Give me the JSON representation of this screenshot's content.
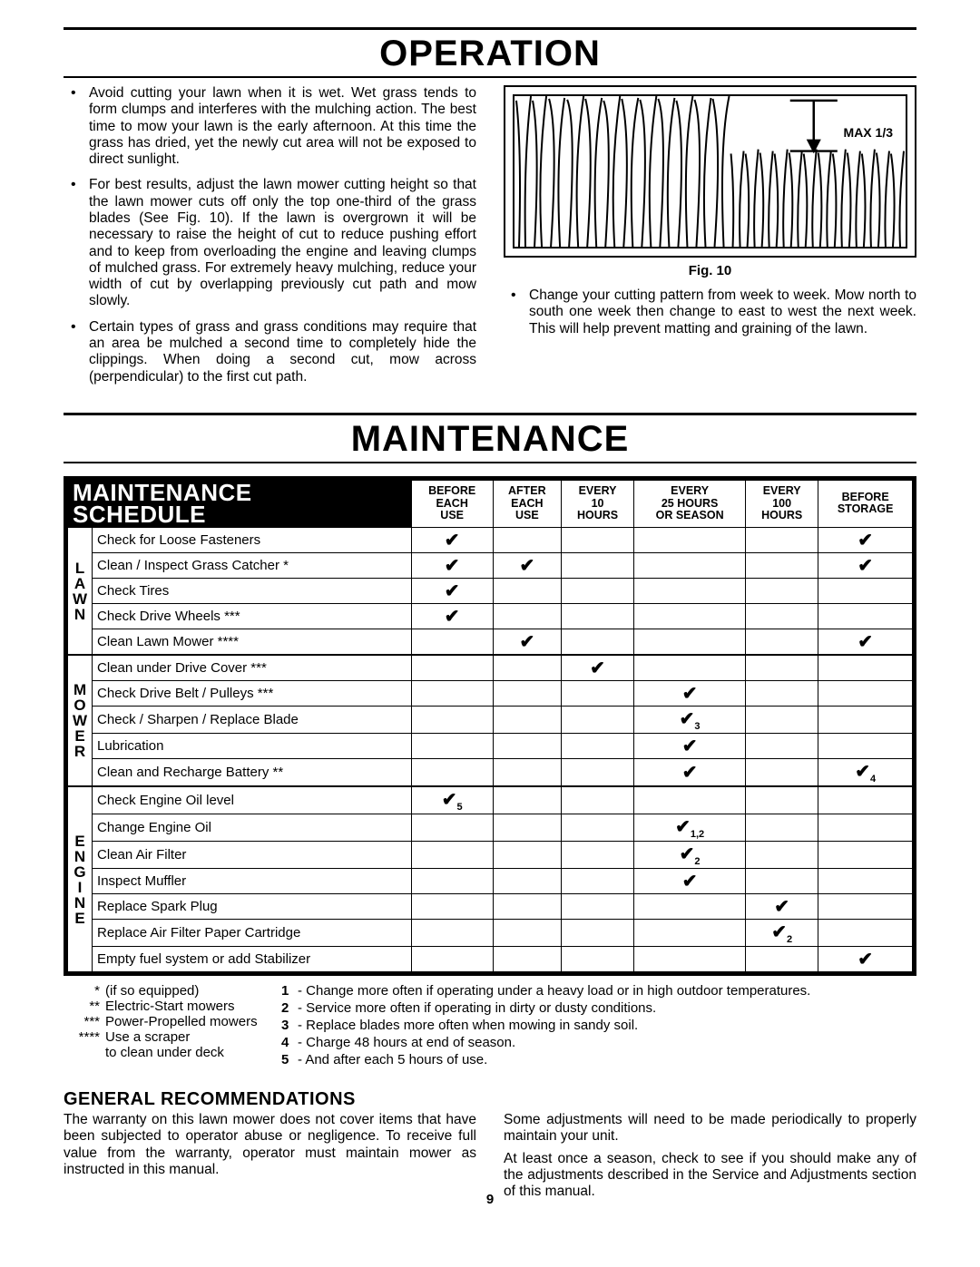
{
  "sections": {
    "operation": "OPERATION",
    "maintenance": "MAINTENANCE"
  },
  "operation": {
    "left_bullets": [
      "Avoid cutting your lawn when it is wet.  Wet grass tends to form clumps and interferes with the mulching action.  The best time to mow your lawn is the early afternoon.  At this time the grass has dried, yet the newly cut area will not be exposed to direct sunlight.",
      "For best results, adjust the lawn mower cutting height so that the lawn mower cuts off only the top one-third of the grass blades (See Fig. 10).  If the lawn is overgrown it will be necessary to raise the height of cut to reduce pushing effort and to keep from overloading the engine and leaving clumps of mulched grass. For extremely heavy mulching, reduce your width of cut by overlapping previously cut path and mow slowly.",
      "Certain types of grass and grass conditions may require that an area be mulched a second time to completely hide the clippings.  When doing a second cut, mow across (perpendicular) to the first cut path."
    ],
    "fig_label": "MAX 1/3",
    "fig_caption": "Fig. 10",
    "right_bullets": [
      "Change your cutting pattern from week to week.  Mow north to south one week then change to east to west the next week.  This will help prevent matting and graining of the lawn."
    ]
  },
  "schedule": {
    "title_line1": "MAINTENANCE",
    "title_line2": "SCHEDULE",
    "columns": [
      "BEFORE\nEACH\nUSE",
      "AFTER\nEACH\nUSE",
      "EVERY\n10\nHOURS",
      "EVERY\n25 HOURS\nOR SEASON",
      "EVERY\n100\nHOURS",
      "BEFORE\nSTORAGE"
    ],
    "groups": [
      {
        "label": "L\nA\nW\nN",
        "rows": [
          {
            "task": "Check for Loose Fasteners",
            "c": [
              true,
              false,
              false,
              false,
              false,
              true
            ],
            "sub": [
              "",
              "",
              "",
              "",
              "",
              ""
            ]
          },
          {
            "task": "Clean / Inspect Grass Catcher *",
            "c": [
              true,
              true,
              false,
              false,
              false,
              true
            ],
            "sub": [
              "",
              "",
              "",
              "",
              "",
              ""
            ]
          },
          {
            "task": "Check Tires",
            "c": [
              true,
              false,
              false,
              false,
              false,
              false
            ],
            "sub": [
              "",
              "",
              "",
              "",
              "",
              ""
            ]
          },
          {
            "task": "Check Drive Wheels ***",
            "c": [
              true,
              false,
              false,
              false,
              false,
              false
            ],
            "sub": [
              "",
              "",
              "",
              "",
              "",
              ""
            ]
          },
          {
            "task": "Clean Lawn Mower ****",
            "c": [
              false,
              true,
              false,
              false,
              false,
              true
            ],
            "sub": [
              "",
              "",
              "",
              "",
              "",
              ""
            ]
          }
        ]
      },
      {
        "label": "M\nO\nW\nE\nR",
        "rows": [
          {
            "task": "Clean under Drive Cover ***",
            "c": [
              false,
              false,
              true,
              false,
              false,
              false
            ],
            "sub": [
              "",
              "",
              "",
              "",
              "",
              ""
            ]
          },
          {
            "task": "Check Drive Belt / Pulleys ***",
            "c": [
              false,
              false,
              false,
              true,
              false,
              false
            ],
            "sub": [
              "",
              "",
              "",
              "",
              "",
              ""
            ]
          },
          {
            "task": "Check / Sharpen / Replace Blade",
            "c": [
              false,
              false,
              false,
              true,
              false,
              false
            ],
            "sub": [
              "",
              "",
              "",
              "3",
              "",
              ""
            ]
          },
          {
            "task": "Lubrication",
            "c": [
              false,
              false,
              false,
              true,
              false,
              false
            ],
            "sub": [
              "",
              "",
              "",
              "",
              "",
              ""
            ]
          },
          {
            "task": "Clean and Recharge Battery **",
            "c": [
              false,
              false,
              false,
              true,
              false,
              true
            ],
            "sub": [
              "",
              "",
              "",
              "",
              "",
              "4"
            ]
          }
        ]
      },
      {
        "label": "E\nN\nG\nI\nN\nE",
        "rows": [
          {
            "task": "Check Engine Oil level",
            "c": [
              true,
              false,
              false,
              false,
              false,
              false
            ],
            "sub": [
              "5",
              "",
              "",
              "",
              "",
              ""
            ]
          },
          {
            "task": "Change Engine Oil",
            "c": [
              false,
              false,
              false,
              true,
              false,
              false
            ],
            "sub": [
              "",
              "",
              "",
              "1,2",
              "",
              ""
            ]
          },
          {
            "task": "Clean Air Filter",
            "c": [
              false,
              false,
              false,
              true,
              false,
              false
            ],
            "sub": [
              "",
              "",
              "",
              "2",
              "",
              ""
            ]
          },
          {
            "task": "Inspect Muffler",
            "c": [
              false,
              false,
              false,
              true,
              false,
              false
            ],
            "sub": [
              "",
              "",
              "",
              "",
              "",
              ""
            ]
          },
          {
            "task": "Replace Spark Plug",
            "c": [
              false,
              false,
              false,
              false,
              true,
              false
            ],
            "sub": [
              "",
              "",
              "",
              "",
              "",
              ""
            ]
          },
          {
            "task": "Replace Air Filter Paper Cartridge",
            "c": [
              false,
              false,
              false,
              false,
              true,
              false
            ],
            "sub": [
              "",
              "",
              "",
              "",
              "2",
              ""
            ]
          },
          {
            "task": "Empty fuel system or add Stabilizer",
            "c": [
              false,
              false,
              false,
              false,
              false,
              true
            ],
            "sub": [
              "",
              "",
              "",
              "",
              "",
              ""
            ]
          }
        ]
      }
    ]
  },
  "footnotes_left": [
    {
      "sym": "*",
      "text": "(if so equipped)"
    },
    {
      "sym": "**",
      "text": "Electric-Start mowers"
    },
    {
      "sym": "***",
      "text": "Power-Propelled mowers"
    },
    {
      "sym": "****",
      "text": "Use a scraper"
    },
    {
      "sym": "",
      "text": "to clean under deck"
    }
  ],
  "footnotes_right": [
    {
      "n": "1",
      "text": "- Change more often if operating under a heavy load or in high outdoor temperatures."
    },
    {
      "n": "2",
      "text": "- Service more often if operating in dirty or dusty conditions."
    },
    {
      "n": "3",
      "text": "- Replace blades more often when mowing in sandy soil."
    },
    {
      "n": "4",
      "text": "- Charge 48 hours at end of season."
    },
    {
      "n": "5",
      "text": "- And after each 5 hours of use."
    }
  ],
  "genrec": {
    "heading": "GENERAL RECOMMENDATIONS",
    "left": "The warranty on this lawn mower does not cover items that have been subjected to operator abuse or negligence.  To receive full value from the warranty, operator must maintain mower as instructed in this manual.",
    "right1": "Some adjustments will need to be made periodically to properly maintain your unit.",
    "right2": "At least once a season, check to see if you should make any of the adjustments described in the Service and Adjustments section of this manual."
  },
  "page_number": "9"
}
